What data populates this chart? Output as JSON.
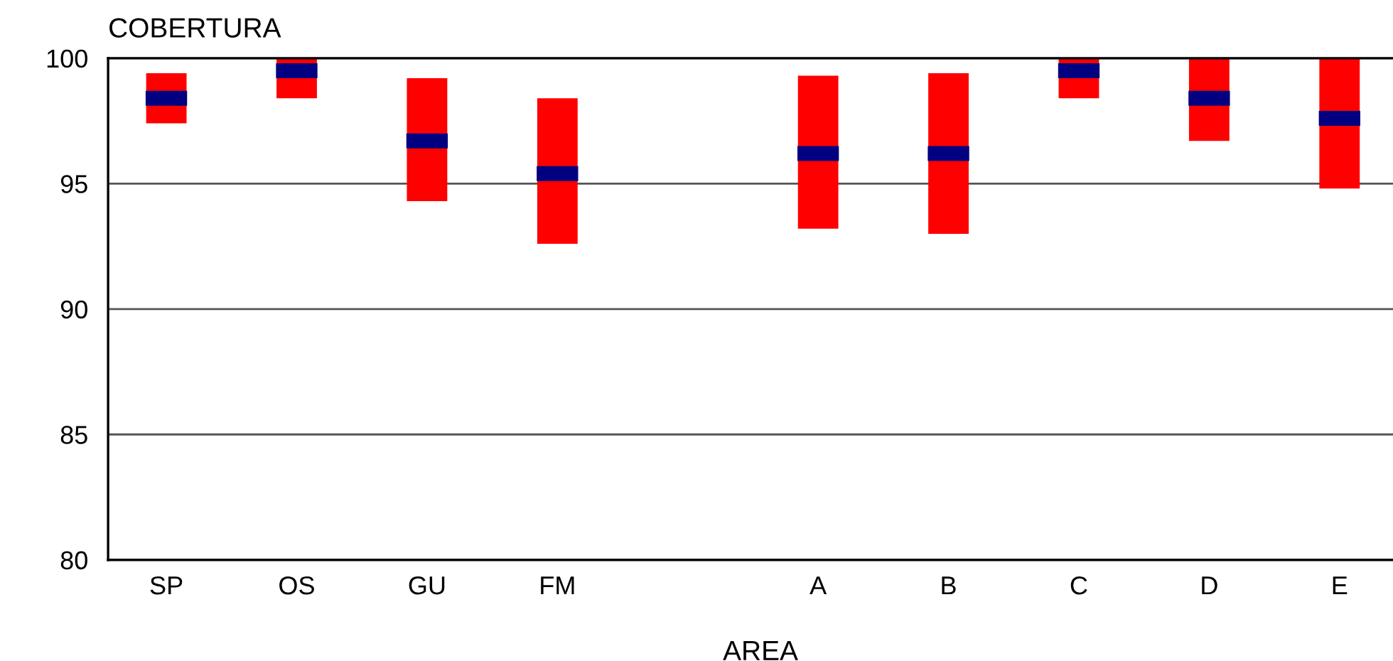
{
  "chart_data": {
    "type": "bar",
    "ylabel": "COBERTURA",
    "xlabel": "AREA",
    "categories": [
      "SP",
      "OS",
      "GU",
      "FM",
      null,
      "A",
      "B",
      "C",
      "D",
      "E"
    ],
    "series": [
      {
        "color": "#ff0000",
        "base": [
          97.4,
          98.4,
          94.3,
          92.6,
          null,
          93.2,
          93.0,
          98.4,
          96.7,
          94.8
        ],
        "values": [
          2.0,
          1.6,
          4.9,
          5.8,
          null,
          6.1,
          6.4,
          1.6,
          3.3,
          5.2
        ]
      },
      {
        "type": "scatter",
        "color": "#000080",
        "values": [
          98.4,
          99.5,
          96.7,
          95.4,
          null,
          96.2,
          96.2,
          99.5,
          98.4,
          97.6
        ]
      }
    ],
    "ylim": [
      80,
      100
    ],
    "yticks": [
      80,
      85,
      90,
      95,
      100
    ],
    "grid": "y",
    "legend": false
  }
}
